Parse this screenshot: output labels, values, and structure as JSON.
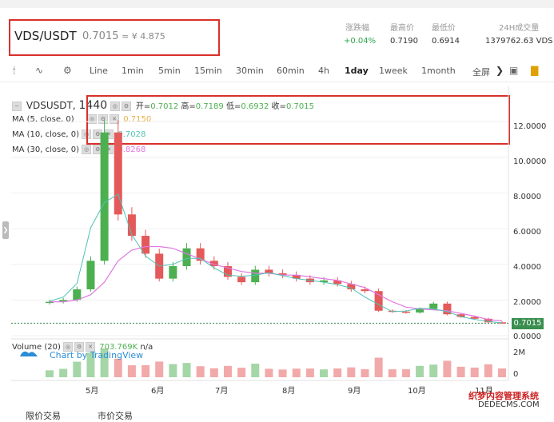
{
  "pair": {
    "name": "VDS/USDT",
    "price": "0.7015",
    "cny": "≈ ¥ 4.875"
  },
  "stats": {
    "labels": [
      "涨跌幅",
      "最高价",
      "最低价",
      "24H成交量"
    ],
    "values": [
      "+0.04%",
      "0.7190",
      "0.6914",
      "1379762.63 VDS"
    ],
    "change_color": "#2fa84f"
  },
  "toolbar": {
    "intervals": [
      "Line",
      "1min",
      "5min",
      "15min",
      "30min",
      "60min",
      "4h",
      "1day",
      "1week",
      "1month"
    ],
    "active_interval": "1day",
    "fullscreen": "全屏",
    "icons": [
      "candles-icon",
      "line-chart-icon",
      "settings-icon",
      "chevron-right-icon",
      "bar-chart-icon"
    ]
  },
  "legend": {
    "symbol": "VDSUSDT",
    "interval": "1440",
    "open_label": "开=",
    "open": "0.7012",
    "high_label": "高=",
    "high": "0.7189",
    "low_label": "低=",
    "low": "0.6932",
    "close_label": "收=",
    "close": "0.7015",
    "ma5_label": "MA (5, close, 0)",
    "ma5": "0.7150",
    "ma10_label": "MA (10, close, 0)",
    "ma10": "0.7028",
    "ma30_label": "MA (30, close, 0)",
    "ma30": "0.8268",
    "colors": {
      "ma5": "#e8b04b",
      "ma10": "#4fc3b4",
      "ma30": "#e078e0",
      "up": "#4caf50",
      "down": "#e45959"
    }
  },
  "y_axis": [
    "12.0000",
    "10.0000",
    "8.0000",
    "6.0000",
    "4.0000",
    "2.0000",
    "0.0000"
  ],
  "last_price_tag": "0.7015",
  "volume": {
    "label": "Volume (20)",
    "value": "703.769K",
    "extra": "n/a",
    "ticks": [
      "2M",
      "0"
    ]
  },
  "x_axis": [
    "5月",
    "6月",
    "7月",
    "8月",
    "9月",
    "10月",
    "11月"
  ],
  "brand": "Chart by TradingView",
  "bottom_tabs": [
    "限价交易",
    "市价交易"
  ],
  "watermark": {
    "line1": "织梦内容管理系统",
    "line2": "DEDECMS.COM"
  },
  "chart_data": {
    "type": "candlestick",
    "title": "VDSUSDT 1440",
    "xlabel": "",
    "ylabel": "",
    "ylim": [
      0,
      13
    ],
    "x": [
      "Apr-28",
      "May-3",
      "May-8",
      "May-10",
      "May-12",
      "May-14",
      "May-16",
      "May-20",
      "May-25",
      "May-30",
      "Jun-5",
      "Jun-10",
      "Jun-15",
      "Jun-20",
      "Jun-25",
      "Jul-1",
      "Jul-8",
      "Jul-15",
      "Jul-22",
      "Jul-29",
      "Aug-5",
      "Aug-12",
      "Aug-19",
      "Aug-26",
      "Sep-2",
      "Sep-9",
      "Sep-16",
      "Sep-23",
      "Sep-30",
      "Oct-7",
      "Oct-14",
      "Oct-21",
      "Oct-28",
      "Nov-2"
    ],
    "series": [
      {
        "name": "close",
        "values": [
          1.9,
          2.0,
          2.6,
          4.2,
          11.4,
          6.8,
          5.6,
          4.6,
          3.2,
          3.9,
          4.9,
          4.2,
          3.9,
          3.3,
          3.0,
          3.7,
          3.5,
          3.4,
          3.2,
          3.0,
          3.1,
          2.9,
          2.6,
          2.5,
          1.4,
          1.35,
          1.3,
          1.5,
          1.8,
          1.2,
          1.05,
          0.95,
          0.75,
          0.7
        ]
      },
      {
        "name": "MA (30, close, 0)",
        "values": [
          1.9,
          1.9,
          2.0,
          2.3,
          3.0,
          4.2,
          4.8,
          5.0,
          5.0,
          4.9,
          4.6,
          4.3,
          4.0,
          3.8,
          3.6,
          3.5,
          3.5,
          3.4,
          3.4,
          3.3,
          3.2,
          3.1,
          2.9,
          2.7,
          2.3,
          1.9,
          1.6,
          1.5,
          1.45,
          1.4,
          1.25,
          1.1,
          0.9,
          0.83
        ]
      }
    ],
    "volume_ylim": [
      0,
      2.5
    ],
    "volume_unit": "M"
  }
}
